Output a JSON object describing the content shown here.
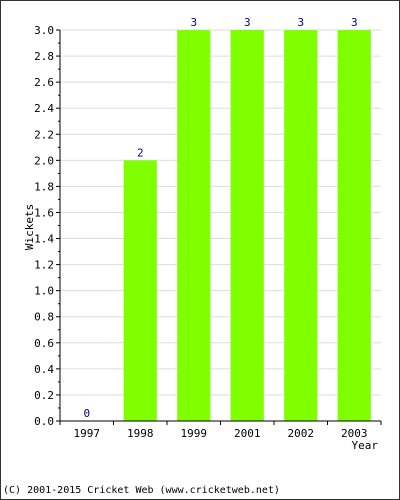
{
  "chart_data": {
    "type": "bar",
    "title": "",
    "xlabel": "Year",
    "ylabel": "Wickets",
    "categories": [
      "1997",
      "1998",
      "1999",
      "2001",
      "2002",
      "2003"
    ],
    "values": [
      0,
      2,
      3,
      3,
      3,
      3
    ],
    "value_labels": [
      "0",
      "2",
      "3",
      "3",
      "3",
      "3"
    ],
    "ylim": [
      0,
      3.0
    ],
    "yticks": [
      "0.0",
      "0.2",
      "0.4",
      "0.6",
      "0.8",
      "1.0",
      "1.2",
      "1.4",
      "1.6",
      "1.8",
      "2.0",
      "2.2",
      "2.4",
      "2.6",
      "2.8",
      "3.0"
    ],
    "grid": true,
    "legend": "none",
    "bar_color": "#7fff00",
    "value_label_color": "#00008b",
    "grid_color": "#dddddd"
  },
  "footer": {
    "copyright": "(C) 2001-2015 Cricket Web (www.cricketweb.net)"
  }
}
